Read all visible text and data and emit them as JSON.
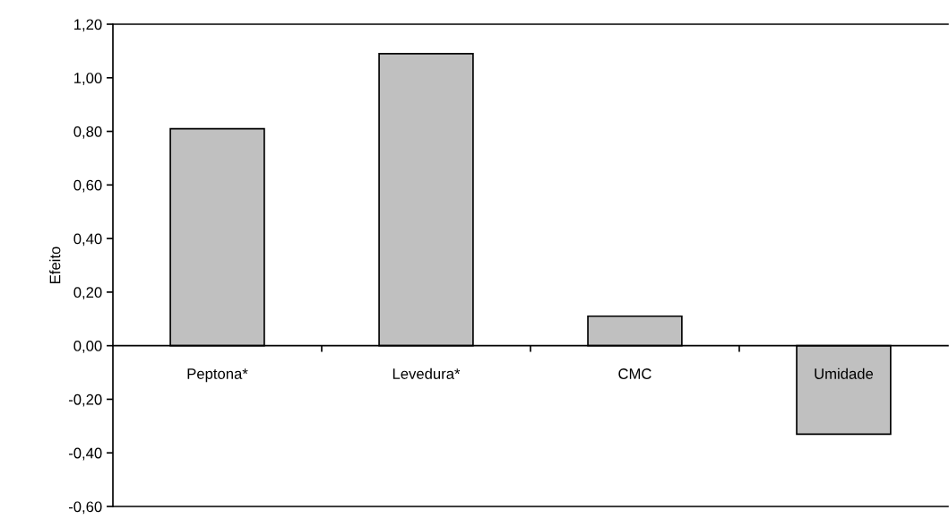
{
  "chart_data": {
    "type": "bar",
    "ylabel": "Efeito",
    "categories": [
      "Peptona*",
      "Levedura*",
      "CMC",
      "Umidade"
    ],
    "values": [
      0.81,
      1.09,
      0.11,
      -0.33
    ],
    "color": "#c0c0c0",
    "ylim": [
      -0.6,
      1.2
    ],
    "yticks": [
      {
        "value": -0.6,
        "label": "-0,60"
      },
      {
        "value": -0.4,
        "label": "-0,40"
      },
      {
        "value": -0.2,
        "label": "-0,20"
      },
      {
        "value": 0,
        "label": "0,00"
      },
      {
        "value": 0.2,
        "label": "0,20"
      },
      {
        "value": 0.4,
        "label": "0,40"
      },
      {
        "value": 0.6,
        "label": "0,60"
      },
      {
        "value": 0.8,
        "label": "0,80"
      },
      {
        "value": 1.0,
        "label": "1,00"
      },
      {
        "value": 1.2,
        "label": "1,20"
      }
    ],
    "grid": false,
    "legend": false
  }
}
